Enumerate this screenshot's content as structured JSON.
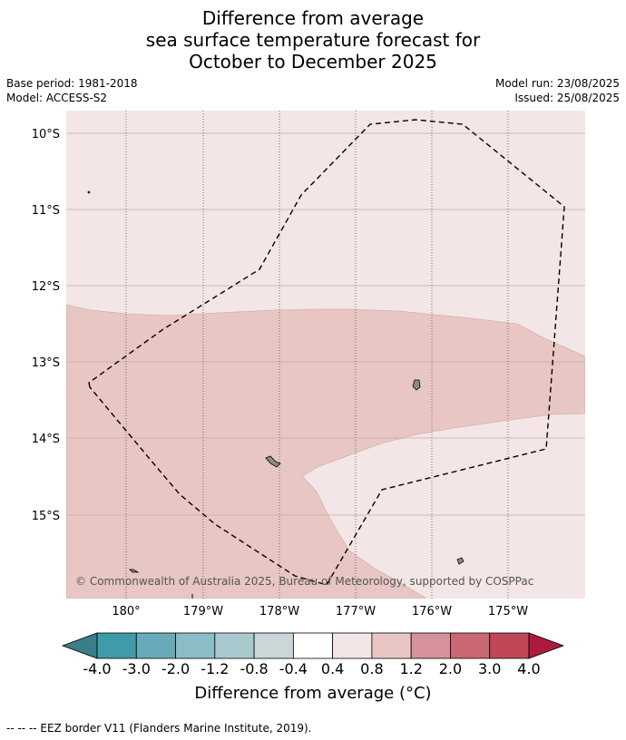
{
  "title": {
    "line1": "Difference from average",
    "line2": "sea surface temperature forecast for",
    "line3": "October to December 2025"
  },
  "meta": {
    "base_period": "Base period: 1981-2018",
    "model": "Model: ACCESS-S2",
    "model_run": "Model run: 23/08/2025",
    "issued": "Issued: 25/08/2025"
  },
  "map": {
    "lat_labels": [
      "10°S",
      "11°S",
      "12°S",
      "13°S",
      "14°S",
      "15°S"
    ],
    "lon_labels": [
      "180°",
      "179°W",
      "178°W",
      "177°W",
      "176°W",
      "175°W"
    ],
    "copyright": "© Commonwealth of Australia 2025, Bureau of Meteorology, supported by COSPPac",
    "region_colors": {
      "background_anomaly": "#f4e6e6",
      "warm_band_anomaly": "#e7c6c3"
    }
  },
  "colorbar": {
    "ticks": [
      "-4.0",
      "-3.0",
      "-2.0",
      "-1.2",
      "-0.8",
      "-0.4",
      "0.4",
      "0.8",
      "1.2",
      "2.0",
      "3.0",
      "4.0"
    ],
    "colors": [
      "#3f9aa9",
      "#67abb8",
      "#8bbdc7",
      "#aac9cf",
      "#c9d7d9",
      "#ffffff",
      "#f4e6e6",
      "#e7c6c3",
      "#d6929a",
      "#c96774",
      "#bf4758"
    ],
    "under_color": "#3a7e88",
    "over_color": "#ad1a3d",
    "label": "Difference from average (°C)"
  },
  "footnote": "--  --  -- EEZ border V11 (Flanders Marine Institute, 2019)."
}
